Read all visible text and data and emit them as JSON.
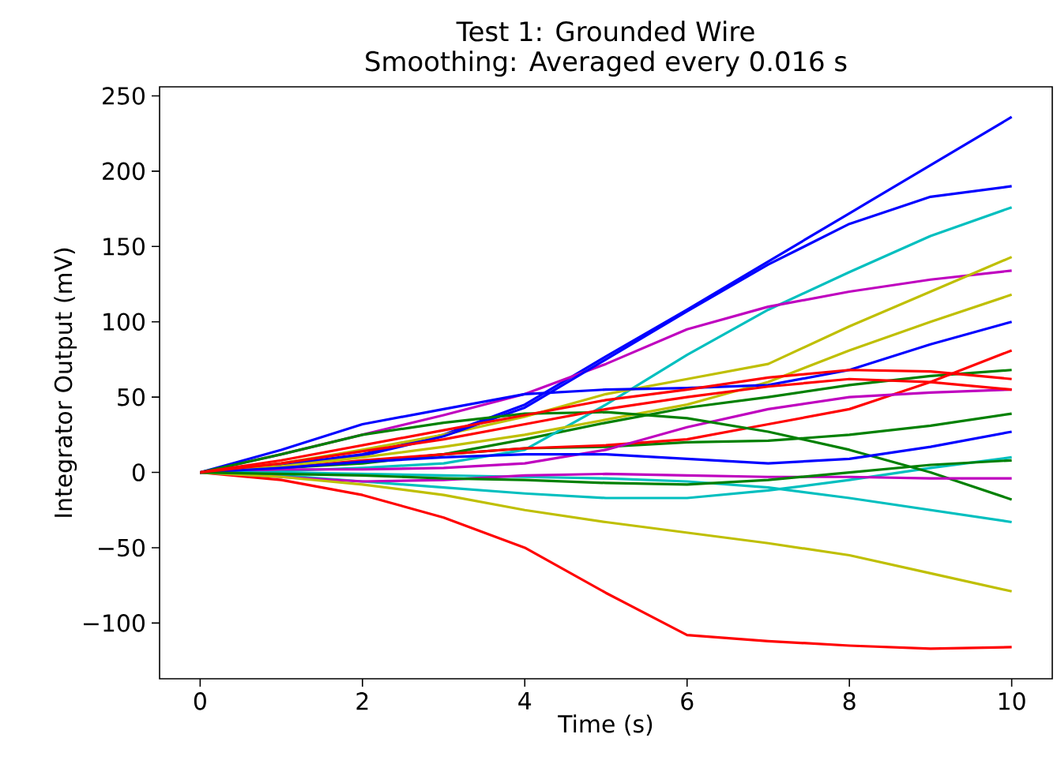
{
  "chart_data": {
    "type": "line",
    "title": "Test 1: Grounded Wire",
    "subtitle": "Smoothing: Averaged every 0.016 s",
    "xlabel": "Time (s)",
    "ylabel": "Integrator Output (mV)",
    "x": [
      0,
      1,
      2,
      3,
      4,
      5,
      6,
      7,
      8,
      9,
      10
    ],
    "xlim": [
      -0.5,
      10.5
    ],
    "xticks": [
      0,
      2,
      4,
      6,
      8,
      10
    ],
    "ylim": [
      -137,
      256
    ],
    "yticks": [
      {
        "value": -100,
        "label": "−100"
      },
      {
        "value": -50,
        "label": "−50"
      },
      0,
      50,
      100,
      150,
      200,
      250
    ],
    "grid": false,
    "marker": "none",
    "line_style": "solid",
    "series": [
      {
        "color": "#0000ff",
        "values": [
          0,
          5,
          12,
          25,
          45,
          77,
          108,
          140,
          172,
          204,
          236
        ]
      },
      {
        "color": "#008000",
        "values": [
          0,
          3,
          6,
          12,
          22,
          33,
          43,
          50,
          58,
          64,
          68
        ]
      },
      {
        "color": "#ff0000",
        "values": [
          0,
          -5,
          -15,
          -30,
          -50,
          -80,
          -108,
          -112,
          -115,
          -117,
          -116
        ]
      },
      {
        "color": "#00bfbf",
        "values": [
          0,
          1,
          3,
          6,
          15,
          45,
          78,
          108,
          133,
          157,
          176
        ]
      },
      {
        "color": "#bf00bf",
        "values": [
          0,
          12,
          25,
          38,
          52,
          72,
          95,
          110,
          120,
          128,
          134
        ]
      },
      {
        "color": "#bfbf00",
        "values": [
          0,
          6,
          15,
          25,
          37,
          52,
          62,
          72,
          97,
          120,
          143
        ]
      },
      {
        "color": "#0000ff",
        "values": [
          0,
          4,
          11,
          24,
          43,
          75,
          107,
          138,
          165,
          183,
          190
        ]
      },
      {
        "color": "#008000",
        "values": [
          0,
          3,
          7,
          12,
          16,
          17,
          20,
          21,
          25,
          31,
          39
        ]
      },
      {
        "color": "#ff0000",
        "values": [
          0,
          3,
          8,
          12,
          16,
          18,
          22,
          32,
          42,
          60,
          81
        ]
      },
      {
        "color": "#00bfbf",
        "values": [
          0,
          -2,
          -6,
          -10,
          -14,
          -17,
          -17,
          -12,
          -5,
          3,
          10
        ]
      },
      {
        "color": "#bf00bf",
        "values": [
          0,
          2,
          2,
          3,
          6,
          15,
          30,
          42,
          50,
          53,
          55
        ]
      },
      {
        "color": "#bfbf00",
        "values": [
          0,
          4,
          10,
          17,
          25,
          35,
          45,
          60,
          81,
          100,
          118
        ]
      },
      {
        "color": "#0000ff",
        "values": [
          0,
          15,
          32,
          42,
          52,
          55,
          56,
          58,
          68,
          85,
          100
        ]
      },
      {
        "color": "#008000",
        "values": [
          0,
          12,
          25,
          33,
          39,
          40,
          36,
          27,
          15,
          0,
          -18
        ]
      },
      {
        "color": "#ff0000",
        "values": [
          0,
          8,
          18,
          28,
          38,
          48,
          55,
          63,
          68,
          67,
          62
        ]
      },
      {
        "color": "#00bfbf",
        "values": [
          0,
          0,
          -1,
          -2,
          -3,
          -4,
          -6,
          -10,
          -17,
          -25,
          -33
        ]
      },
      {
        "color": "#bf00bf",
        "values": [
          0,
          -3,
          -6,
          -5,
          -2,
          -1,
          -2,
          -3,
          -3,
          -4,
          -4
        ]
      },
      {
        "color": "#bfbf00",
        "values": [
          0,
          -3,
          -8,
          -15,
          -25,
          -33,
          -40,
          -47,
          -55,
          -67,
          -79
        ]
      },
      {
        "color": "#0000ff",
        "values": [
          0,
          3,
          7,
          10,
          12,
          12,
          9,
          6,
          9,
          17,
          27
        ]
      },
      {
        "color": "#008000",
        "values": [
          0,
          -1,
          -2,
          -4,
          -5,
          -7,
          -8,
          -5,
          0,
          5,
          8
        ]
      },
      {
        "color": "#ff0000",
        "values": [
          0,
          6,
          14,
          22,
          32,
          42,
          50,
          57,
          62,
          60,
          55
        ]
      }
    ]
  }
}
